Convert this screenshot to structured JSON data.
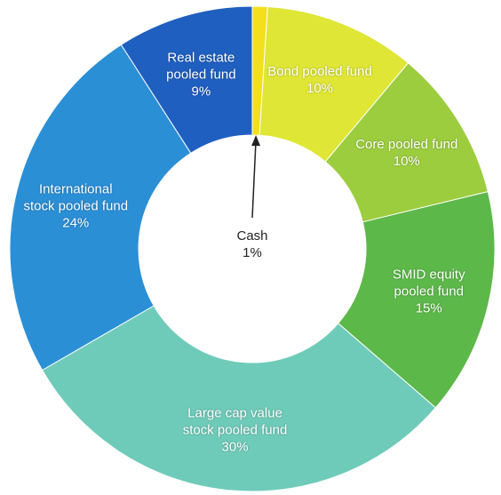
{
  "chart_data": {
    "type": "donut",
    "categories": [
      "Cash",
      "Bond pooled fund",
      "Core pooled fund",
      "SMID equity pooled fund",
      "Large cap value stock pooled fund",
      "International stock pooled fund",
      "Real estate pooled fund"
    ],
    "values": [
      1,
      10,
      10,
      15,
      30,
      24,
      9
    ],
    "value_labels": [
      "1%",
      "10%",
      "10%",
      "15%",
      "30%",
      "24%",
      "9%"
    ],
    "colors": [
      "#f3df1c",
      "#dfe636",
      "#9ccd3e",
      "#5db84a",
      "#6fcbb9",
      "#2b8fd6",
      "#1f5fc0"
    ]
  }
}
